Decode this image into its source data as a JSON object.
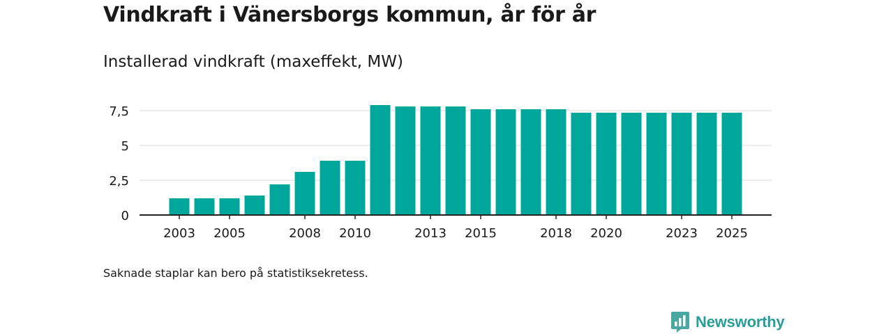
{
  "colors": {
    "bar": "#00a89c",
    "grid": "#d9d9d9",
    "axis": "#222222",
    "brand": "#2a9d99"
  },
  "chart_data": {
    "type": "bar",
    "title": "Vindkraft i Vänersborgs kommun, år för år",
    "subtitle": "Installerad vindkraft (maxeffekt, MW)",
    "xlabel": "",
    "ylabel": "",
    "categories": [
      2003,
      2004,
      2005,
      2006,
      2007,
      2008,
      2009,
      2010,
      2011,
      2012,
      2013,
      2014,
      2015,
      2016,
      2017,
      2018,
      2019,
      2020,
      2021,
      2022,
      2023,
      2024,
      2025
    ],
    "values": [
      1.2,
      1.2,
      1.2,
      1.4,
      2.2,
      3.1,
      3.9,
      3.9,
      7.9,
      7.8,
      7.8,
      7.8,
      7.6,
      7.6,
      7.6,
      7.6,
      7.35,
      7.35,
      7.35,
      7.35,
      7.35,
      7.35,
      7.35
    ],
    "ylim": [
      0,
      8.2
    ],
    "yticks": [
      0,
      2.5,
      5,
      7.5
    ],
    "ytick_labels": [
      "0",
      "2,5",
      "5",
      "7,5"
    ],
    "xtick_labels": [
      "2003",
      "2005",
      "2008",
      "2010",
      "2013",
      "2015",
      "2018",
      "2020",
      "2023",
      "2025"
    ],
    "grid": true,
    "legend": "none"
  },
  "footnote": "Saknade staplar kan bero på statistiksekretess.",
  "brand": {
    "name": "Newsworthy",
    "logo_icon": "bar-chart-badge-icon"
  }
}
